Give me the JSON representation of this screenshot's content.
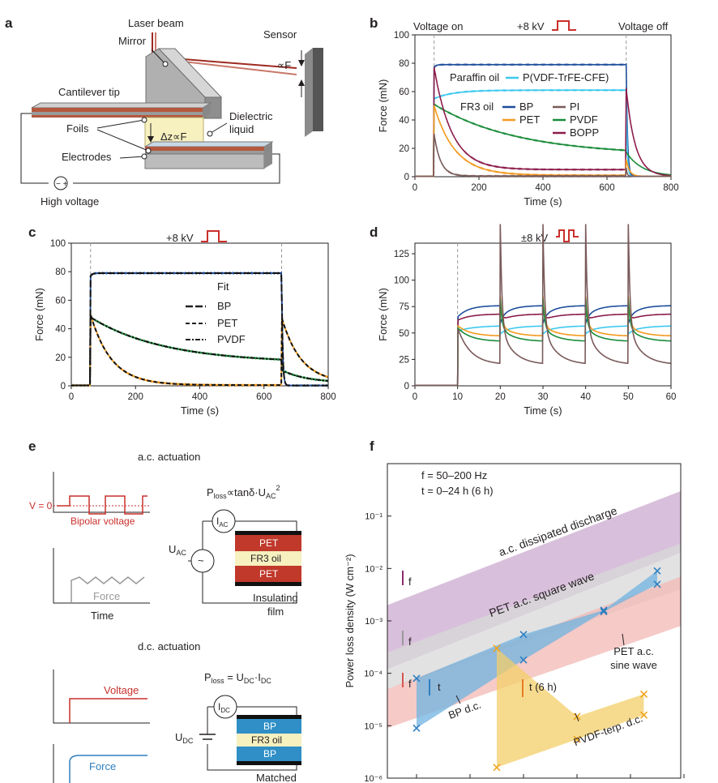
{
  "figure": {
    "panels": {
      "a": {
        "label": "a",
        "texts": {
          "laser": "Laser beam",
          "sensor": "Sensor",
          "mirror": "Mirror",
          "cantilever": "Cantilever tip",
          "dielectric": "Dielectric",
          "liquid": "liquid",
          "foils": "Foils",
          "electrodes": "Electrodes",
          "deltaz": "Δz∝F",
          "propF": "∝F",
          "hv": "High voltage"
        },
        "colors": {
          "liquid": "#f7f0bf",
          "foil": "#b4583d",
          "laser": "#9e2a22",
          "metal": "#a8a8a8",
          "sensor": "#555555"
        }
      },
      "b": {
        "label": "b",
        "texts": {
          "von": "Voltage on",
          "voff": "Voltage off",
          "volt": "+8 kV",
          "paraffin": "Paraffin oil",
          "p_vdf": "P(VDF-TrFE-CFE)",
          "fr3": "FR3 oil",
          "bp": "BP",
          "pet": "PET",
          "pi": "PI",
          "pvdf": "PVDF",
          "bopp": "BOPP"
        }
      },
      "c": {
        "label": "c",
        "texts": {
          "volt": "+8 kV",
          "fit": "Fit",
          "bp": "BP",
          "pet": "PET",
          "pvdf": "PVDF"
        }
      },
      "d": {
        "label": "d",
        "texts": {
          "volt": "±8 kV"
        }
      },
      "e": {
        "label": "e",
        "texts": {
          "ac_title": "a.c. actuation",
          "v0": "V = 0",
          "bipolar": "Bipolar voltage",
          "force": "Force",
          "time": "Time",
          "ploss_ac": "P",
          "ploss_ac_sub": "loss",
          "ploss_ac_rest": "∝tanδ·U",
          "ploss_ac_sub2": "AC",
          "ploss_ac_sup": "2",
          "iac": "I",
          "iac_sub": "AC",
          "uac": "U",
          "uac_sub": "AC",
          "pet1": "PET",
          "fr3_ac": "FR3 oil",
          "pet2": "PET",
          "insulating": "Insulating",
          "film": "film",
          "dc_title": "d.c. actuation",
          "voltage": "Voltage",
          "force_dc": "Force",
          "ploss_dc": "P",
          "ploss_dc_sub": "loss",
          "ploss_dc_rest": " = U",
          "ploss_dc_sub2": "DC",
          "ploss_dc_mid": "·I",
          "ploss_dc_sub3": "DC",
          "idc": "I",
          "idc_sub": "DC",
          "udc": "U",
          "udc_sub": "DC",
          "bp1": "BP",
          "fr3_dc": "FR3 oil",
          "bp2": "BP",
          "matched": "Matched"
        }
      },
      "f": {
        "label": "f",
        "texts": {
          "freq": "f  = 50–200 Hz",
          "time": "t  = 0–24 h (6 h)",
          "ac_dis": "a.c. dissipated discharge",
          "pet_sq": "PET a.c. square wave",
          "pet_sine1": "PET a.c.",
          "pet_sine2": "sine wave",
          "bp_dc": "BP d.c.",
          "pvdf_dc": "PVDF-terp. d.c.",
          "t6h": "t (6 h)",
          "t": "t",
          "f": "f"
        }
      }
    }
  },
  "chart_data": [
    {
      "panel": "b",
      "type": "line",
      "xlabel": "Time (s)",
      "ylabel": "Force (mN)",
      "xlim": [
        0,
        800
      ],
      "ylim": [
        0,
        100
      ],
      "xticks": [
        0,
        200,
        400,
        600,
        800
      ],
      "yticks": [
        0,
        20,
        40,
        60,
        80,
        100
      ],
      "voltage_on": 60,
      "voltage_off": 660,
      "series": [
        {
          "name": "BP",
          "color": "#1f4e9c",
          "plateau": 79,
          "initial": 77,
          "tau_on": 6,
          "decay_off": 4
        },
        {
          "name": "P(VDF-TrFE-CFE)",
          "color": "#3cc8f0",
          "plateau": 61,
          "initial": 55,
          "tau_on": 60,
          "decay_off": 3
        },
        {
          "name": "PVDF",
          "color": "#1a8c3a",
          "plateau": 15,
          "initial": 51,
          "tau_on": 260,
          "decay_off": 50
        },
        {
          "name": "BOPP",
          "color": "#8c1c4a",
          "plateau": 5,
          "initial": 77,
          "tau_on": 55,
          "decay_off": 28
        },
        {
          "name": "PET",
          "color": "#f39a1e",
          "plateau": 1,
          "initial": 50,
          "tau_on": 65,
          "decay_off": 10
        },
        {
          "name": "PI",
          "color": "#7a5a5a",
          "plateau": 0.5,
          "initial": 30,
          "tau_on": 20,
          "decay_off": 3
        }
      ]
    },
    {
      "panel": "c",
      "type": "line",
      "xlabel": "Time (s)",
      "ylabel": "Force (mN)",
      "xlim": [
        0,
        800
      ],
      "ylim": [
        0,
        100
      ],
      "xticks": [
        0,
        200,
        400,
        600,
        800
      ],
      "yticks": [
        0,
        20,
        40,
        60,
        80,
        100
      ],
      "voltage_on": 60,
      "voltage_off": 655,
      "series": [
        {
          "name": "BP",
          "color": "#1f4e9c",
          "plateau": 79,
          "initial": 77,
          "tau_on": 6,
          "decay_off": 3,
          "off_peak": 0
        },
        {
          "name": "PVDF",
          "color": "#1a8c3a",
          "plateau": 16,
          "initial": 48,
          "tau_on": 230,
          "decay_off": 80,
          "off_peak": 9
        },
        {
          "name": "PET",
          "color": "#f39a1e",
          "plateau": 0.5,
          "initial": 50,
          "tau_on": 65,
          "decay_off": 60,
          "off_peak": 46
        }
      ],
      "fits": [
        {
          "name": "BP",
          "style": "long-dash"
        },
        {
          "name": "PET",
          "style": "dash"
        },
        {
          "name": "PVDF",
          "style": "dash-dot"
        }
      ]
    },
    {
      "panel": "d",
      "type": "line",
      "xlabel": "Time (s)",
      "ylabel": "Force (mN)",
      "xlim": [
        0,
        60
      ],
      "ylim": [
        0,
        135
      ],
      "xticks": [
        0,
        10,
        20,
        30,
        40,
        50,
        60
      ],
      "yticks": [
        0,
        25,
        50,
        75,
        100,
        125
      ],
      "voltage_on": 10,
      "switch_times": [
        20,
        30,
        40,
        50
      ],
      "series": [
        {
          "name": "BP",
          "color": "#1f4e9c",
          "start": 65,
          "end": 76,
          "spike": 0,
          "drop": 0
        },
        {
          "name": "BOPP",
          "color": "#8c1c4a",
          "start": 62,
          "end": 68,
          "spike": 78,
          "drop": 0
        },
        {
          "name": "P(VDF-TrFE-CFE)",
          "color": "#3cc8f0",
          "start": 52,
          "end": 57,
          "spike": 0,
          "drop": 0
        },
        {
          "name": "PET",
          "color": "#f39a1e",
          "start": 57,
          "end": 47,
          "spike": 75,
          "drop": 0
        },
        {
          "name": "PVDF",
          "color": "#1a8c3a",
          "start": 55,
          "end": 42,
          "spike": 70,
          "drop": 0
        },
        {
          "name": "PI",
          "color": "#7a5a5a",
          "start": 55,
          "end": 20,
          "spike": 118,
          "drop": 0
        }
      ]
    },
    {
      "panel": "f",
      "type": "scatter",
      "xlabel": "",
      "ylabel": "Power loss density (W cm⁻²)",
      "yscale": "log",
      "ylim": [
        1e-06,
        1.0
      ],
      "yticks_labels": [
        "10⁻⁶",
        "10⁻⁵",
        "10⁻⁴",
        "10⁻³",
        "10⁻²",
        "10⁻¹"
      ],
      "bands": [
        {
          "name": "a.c. dissipated discharge",
          "color": "#cba9cf"
        },
        {
          "name": "PET a.c. square wave",
          "color": "#d8d8d8"
        },
        {
          "name": "PET a.c. sine wave",
          "color": "#f2b8b4"
        }
      ],
      "series": [
        {
          "name": "BP d.c.",
          "color": "#2f7fc1",
          "points": [
            [
              1,
              8e-05
            ],
            [
              1,
              9e-06
            ],
            [
              5,
              0.00055
            ],
            [
              5,
              0.00018
            ],
            [
              8,
              0.0016
            ],
            [
              8,
              0.0015
            ],
            [
              10,
              0.009
            ],
            [
              10,
              0.005
            ]
          ]
        },
        {
          "name": "PVDF-terp. d.c.",
          "color": "#f0a51e",
          "points": [
            [
              4,
              0.0003
            ],
            [
              4,
              1.6e-06
            ],
            [
              7,
              1.5e-05
            ],
            [
              7,
              5.5e-06
            ],
            [
              9.5,
              4e-05
            ],
            [
              9.5,
              1.6e-05
            ]
          ]
        }
      ]
    }
  ]
}
